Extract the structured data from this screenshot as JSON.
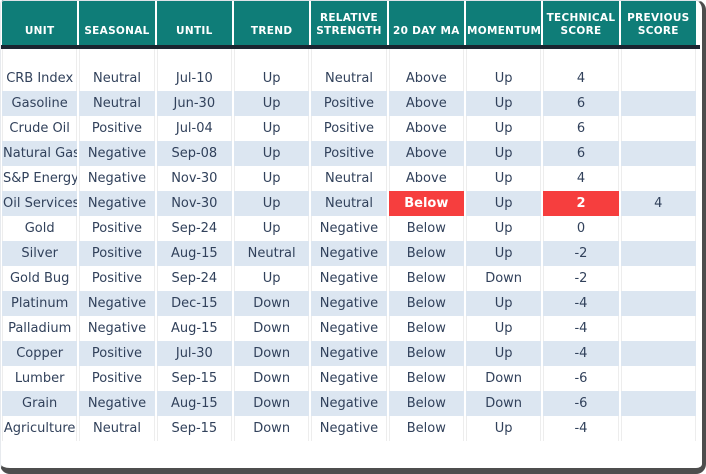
{
  "colors": {
    "header_bg": "#0F7D78",
    "header_text": "#FFFFFF",
    "header_underline": "#1A2430",
    "row_stripe": "#DCE6F1",
    "row_plain": "#FFFFFF",
    "body_text": "#31415B",
    "alert_bg": "#F63E3E",
    "alert_text": "#FFFFFF",
    "frame_border": "#4D4D4D"
  },
  "chart_data": {
    "type": "table",
    "columns": [
      "UNIT",
      "SEASONAL",
      "UNTIL",
      "TREND",
      "RELATIVE STRENGTH",
      "20 DAY MA",
      "MOMENTUM",
      "TECHNICAL SCORE",
      "PREVIOUS SCORE"
    ],
    "rows": [
      {
        "cells": [
          "CRB Index",
          "Neutral",
          "Jul-10",
          "Up",
          "Neutral",
          "Above",
          "Up",
          "4",
          ""
        ],
        "alert_cells": []
      },
      {
        "cells": [
          "Gasoline",
          "Neutral",
          "Jun-30",
          "Up",
          "Positive",
          "Above",
          "Up",
          "6",
          ""
        ],
        "alert_cells": []
      },
      {
        "cells": [
          "Crude Oil",
          "Positive",
          "Jul-04",
          "Up",
          "Positive",
          "Above",
          "Up",
          "6",
          ""
        ],
        "alert_cells": []
      },
      {
        "cells": [
          "Natural Gas",
          "Negative",
          "Sep-08",
          "Up",
          "Positive",
          "Above",
          "Up",
          "6",
          ""
        ],
        "alert_cells": []
      },
      {
        "cells": [
          "S&P Energy",
          "Negative",
          "Nov-30",
          "Up",
          "Neutral",
          "Above",
          "Up",
          "4",
          ""
        ],
        "alert_cells": []
      },
      {
        "cells": [
          "Oil Services",
          "Negative",
          "Nov-30",
          "Up",
          "Neutral",
          "Below",
          "Up",
          "2",
          "4"
        ],
        "alert_cells": [
          5,
          7
        ]
      },
      {
        "cells": [
          "Gold",
          "Positive",
          "Sep-24",
          "Up",
          "Negative",
          "Below",
          "Up",
          "0",
          ""
        ],
        "alert_cells": []
      },
      {
        "cells": [
          "Silver",
          "Positive",
          "Aug-15",
          "Neutral",
          "Negative",
          "Below",
          "Up",
          "-2",
          ""
        ],
        "alert_cells": []
      },
      {
        "cells": [
          "Gold Bug",
          "Positive",
          "Sep-24",
          "Up",
          "Negative",
          "Below",
          "Down",
          "-2",
          ""
        ],
        "alert_cells": []
      },
      {
        "cells": [
          "Platinum",
          "Negative",
          "Dec-15",
          "Down",
          "Negative",
          "Below",
          "Up",
          "-4",
          ""
        ],
        "alert_cells": []
      },
      {
        "cells": [
          "Palladium",
          "Negative",
          "Aug-15",
          "Down",
          "Negative",
          "Below",
          "Up",
          "-4",
          ""
        ],
        "alert_cells": []
      },
      {
        "cells": [
          "Copper",
          "Positive",
          "Jul-30",
          "Down",
          "Negative",
          "Below",
          "Up",
          "-4",
          ""
        ],
        "alert_cells": []
      },
      {
        "cells": [
          "Lumber",
          "Positive",
          "Sep-15",
          "Down",
          "Negative",
          "Below",
          "Down",
          "-6",
          ""
        ],
        "alert_cells": []
      },
      {
        "cells": [
          "Grain",
          "Negative",
          "Aug-15",
          "Down",
          "Negative",
          "Below",
          "Down",
          "-6",
          ""
        ],
        "alert_cells": []
      },
      {
        "cells": [
          "Agriculture",
          "Neutral",
          "Sep-15",
          "Down",
          "Negative",
          "Below",
          "Up",
          "-4",
          ""
        ],
        "alert_cells": []
      }
    ]
  }
}
